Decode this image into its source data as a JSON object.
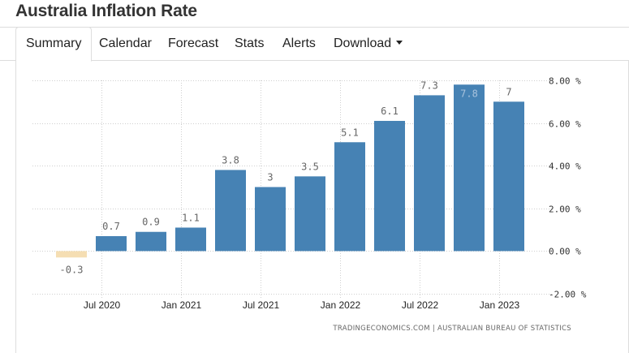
{
  "page": {
    "title": "Australia Inflation Rate"
  },
  "tabs": [
    {
      "label": "Summary",
      "active": true
    },
    {
      "label": "Calendar"
    },
    {
      "label": "Forecast"
    },
    {
      "label": "Stats"
    },
    {
      "label": "Alerts"
    },
    {
      "label": "Download"
    }
  ],
  "colors": {
    "positive": "#4682b4",
    "negative": "#f5deb3"
  },
  "chart_data": {
    "type": "bar",
    "title": "",
    "unit": "%",
    "categories": [
      "2020-Q2",
      "2020-Q3",
      "2020-Q4",
      "2021-Q1",
      "2021-Q2",
      "2021-Q3",
      "2021-Q4",
      "2022-Q1",
      "2022-Q2",
      "2022-Q3",
      "2022-Q4",
      "2023-Q1"
    ],
    "values": [
      -0.3,
      0.7,
      0.9,
      1.1,
      3.8,
      3.0,
      3.5,
      5.1,
      6.1,
      7.3,
      7.8,
      7.0
    ],
    "data_labels": [
      "-0.3",
      "0.7",
      "0.9",
      "1.1",
      "3.8",
      "3",
      "3.5",
      "5.1",
      "6.1",
      "7.3",
      "7.8",
      "7"
    ],
    "ylim": [
      -2,
      8
    ],
    "yticks": [
      {
        "value": 8,
        "label": "8.00 %"
      },
      {
        "value": 6,
        "label": "6.00 %"
      },
      {
        "value": 4,
        "label": "4.00 %"
      },
      {
        "value": 2,
        "label": "2.00 %"
      },
      {
        "value": 0,
        "label": "0.00 %"
      },
      {
        "value": -2,
        "label": "-2.00 %"
      }
    ],
    "xticks": [
      {
        "index": 0.75,
        "label": "Jul 2020"
      },
      {
        "index": 2.75,
        "label": "Jan 2021"
      },
      {
        "index": 4.75,
        "label": "Jul 2021"
      },
      {
        "index": 6.75,
        "label": "Jan 2022"
      },
      {
        "index": 8.75,
        "label": "Jul 2022"
      },
      {
        "index": 10.75,
        "label": "Jan 2023"
      }
    ],
    "grid": true,
    "legend": "none",
    "source": "TRADINGECONOMICS.COM | AUSTRALIAN BUREAU OF STATISTICS"
  }
}
